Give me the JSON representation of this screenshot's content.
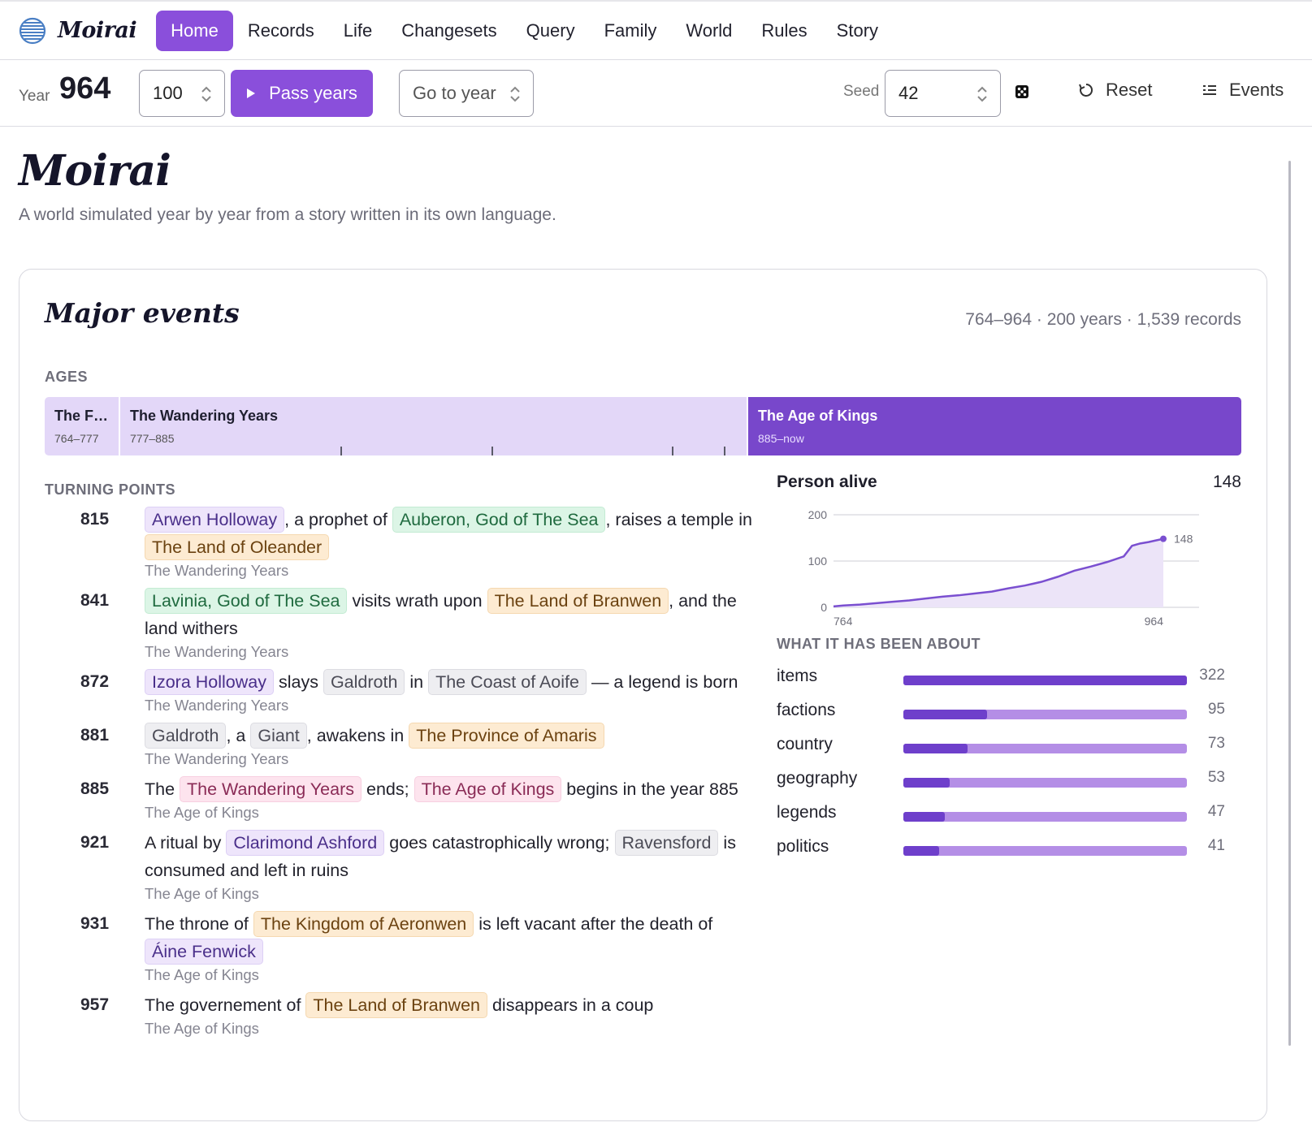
{
  "nav": {
    "brand": "Moirai",
    "items": [
      "Home",
      "Records",
      "Life",
      "Changesets",
      "Query",
      "Family",
      "World",
      "Rules",
      "Story"
    ],
    "active": "Home"
  },
  "toolbar": {
    "year_label": "Year",
    "year_value": "964",
    "pass_count": "100",
    "pass_label": "Pass years",
    "goto_placeholder": "Go to year",
    "seed_label": "Seed",
    "seed_value": "42",
    "reset_label": "Reset",
    "events_label": "Events"
  },
  "page": {
    "title": "Moirai",
    "subtitle": "A world simulated year by year from a story written in its own language."
  },
  "major": {
    "title": "Major events",
    "stats": "764–964 · 200 years · 1,539 records",
    "ages_label": "AGES",
    "ages": [
      {
        "name": "The F…",
        "range": "764–777",
        "start": 764,
        "end": 777
      },
      {
        "name": "The Wandering Years",
        "range": "777–885",
        "start": 777,
        "end": 885
      },
      {
        "name": "The Age of Kings",
        "range": "885–now",
        "start": 885,
        "end": 964,
        "current": true
      }
    ],
    "turning_label": "TURNING POINTS",
    "turning_points": [
      {
        "year": "815",
        "age": "The Wandering Years",
        "parts": [
          {
            "chip": "person",
            "text": "Arwen Holloway"
          },
          {
            "text": ", a prophet of "
          },
          {
            "chip": "god",
            "text": "Auberon, God of The Sea"
          },
          {
            "text": ", raises a temple in "
          },
          {
            "chip": "place",
            "text": "The Land of Oleander"
          }
        ]
      },
      {
        "year": "841",
        "age": "The Wandering Years",
        "parts": [
          {
            "chip": "god",
            "text": "Lavinia, God of The Sea"
          },
          {
            "text": " visits wrath upon "
          },
          {
            "chip": "place",
            "text": "The Land of Branwen"
          },
          {
            "text": ", and the land withers"
          }
        ]
      },
      {
        "year": "872",
        "age": "The Wandering Years",
        "parts": [
          {
            "chip": "person",
            "text": "Izora Holloway"
          },
          {
            "text": " slays "
          },
          {
            "chip": "gray",
            "text": "Galdroth"
          },
          {
            "text": " in "
          },
          {
            "chip": "gray",
            "text": "The Coast of Aoife"
          },
          {
            "text": " — a legend is born"
          }
        ]
      },
      {
        "year": "881",
        "age": "The Wandering Years",
        "parts": [
          {
            "chip": "gray",
            "text": "Galdroth"
          },
          {
            "text": ", a "
          },
          {
            "chip": "gray",
            "text": "Giant"
          },
          {
            "text": ", awakens in "
          },
          {
            "chip": "place",
            "text": "The Province of Amaris"
          }
        ]
      },
      {
        "year": "885",
        "age": "The Age of Kings",
        "parts": [
          {
            "text": "The "
          },
          {
            "chip": "era",
            "text": "The Wandering Years"
          },
          {
            "text": " ends; "
          },
          {
            "chip": "era",
            "text": "The Age of Kings"
          },
          {
            "text": " begins in the year 885"
          }
        ]
      },
      {
        "year": "921",
        "age": "The Age of Kings",
        "parts": [
          {
            "text": "A ritual by "
          },
          {
            "chip": "person",
            "text": "Clarimond Ashford"
          },
          {
            "text": " goes catastrophically wrong; "
          },
          {
            "chip": "gray",
            "text": "Ravensford"
          },
          {
            "text": " is consumed and left in ruins"
          }
        ]
      },
      {
        "year": "931",
        "age": "The Age of Kings",
        "parts": [
          {
            "text": "The throne of "
          },
          {
            "chip": "place",
            "text": "The Kingdom of Aeronwen"
          },
          {
            "text": " is left vacant after the death of "
          },
          {
            "chip": "person",
            "text": "Áine Fenwick"
          }
        ]
      },
      {
        "year": "957",
        "age": "The Age of Kings",
        "parts": [
          {
            "text": "The governement of "
          },
          {
            "chip": "place",
            "text": "The Land of Branwen"
          },
          {
            "text": " disappears in a coup"
          }
        ]
      }
    ]
  },
  "person_alive": {
    "title": "Person alive",
    "current": "148"
  },
  "chart_data": {
    "type": "area",
    "title": "Person alive",
    "xlabel": "",
    "ylabel": "",
    "x_ticks": [
      "764",
      "964"
    ],
    "y_ticks": [
      "0",
      "100",
      "200"
    ],
    "xlim": [
      764,
      964
    ],
    "ylim": [
      0,
      200
    ],
    "grid": true,
    "end_label": "148",
    "series": [
      {
        "x": [
          764,
          770,
          780,
          790,
          800,
          810,
          820,
          830,
          840,
          850,
          860,
          870,
          880,
          890,
          900,
          910,
          920,
          930,
          940,
          945,
          950,
          955,
          960,
          964
        ],
        "y": [
          2,
          4,
          6,
          9,
          12,
          15,
          19,
          23,
          26,
          30,
          34,
          41,
          47,
          55,
          66,
          79,
          88,
          98,
          110,
          133,
          138,
          141,
          145,
          148
        ]
      }
    ],
    "color": "#7a4fd0"
  },
  "about": {
    "title": "WHAT IT HAS BEEN ABOUT",
    "max": 322,
    "items": [
      {
        "label": "items",
        "value": 322,
        "display": "322"
      },
      {
        "label": "factions",
        "value": 95,
        "display": "95"
      },
      {
        "label": "country",
        "value": 73,
        "display": "73"
      },
      {
        "label": "geography",
        "value": 53,
        "display": "53"
      },
      {
        "label": "legends",
        "value": 47,
        "display": "47"
      },
      {
        "label": "politics",
        "value": 41,
        "display": "41"
      }
    ]
  },
  "colors": {
    "accent": "#8a4fdb",
    "age_current": "#7847cb",
    "age_past": "#e3d7f8"
  }
}
